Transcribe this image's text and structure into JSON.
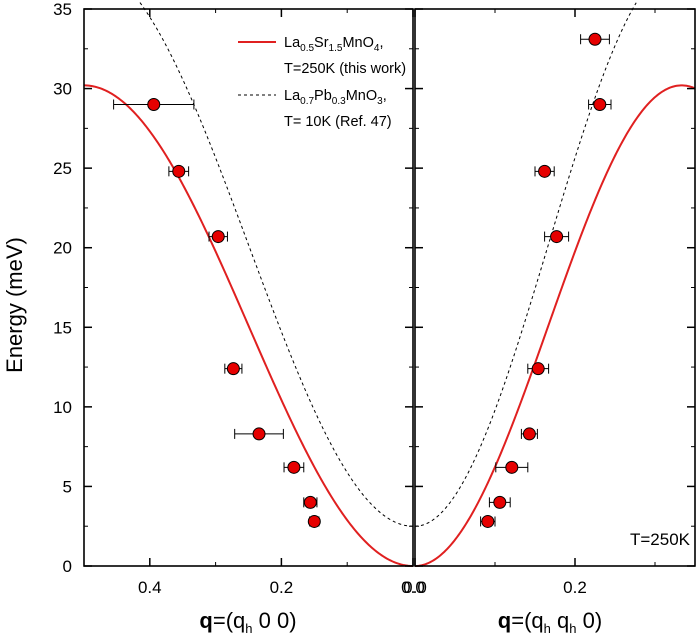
{
  "chart_data": {
    "type": "scatter",
    "ylabel": "Energy (meV)",
    "ylim": [
      0,
      35
    ],
    "yticks": [
      0,
      5,
      10,
      15,
      20,
      25,
      30,
      35
    ],
    "annotation": "T=250K",
    "colors": {
      "data": "#e60000",
      "fit": "#e02020",
      "reference": "#000000"
    },
    "panels": [
      {
        "id": "left",
        "direction": "(q_h 0 0)",
        "xlabel_bold": "q",
        "xlabel_parts": [
          "=(q",
          "h",
          " 0 0)"
        ],
        "xlim": [
          0.5,
          0.0
        ],
        "xticks": [
          0.4,
          0.2,
          0.0
        ],
        "xtick_labels": [
          "0.4",
          "0.2",
          "0.0"
        ],
        "points": [
          {
            "q": 0.15,
            "E": 2.8,
            "xerr": 0.007
          },
          {
            "q": 0.156,
            "E": 4.0,
            "xerr": 0.01
          },
          {
            "q": 0.181,
            "E": 6.2,
            "xerr": 0.015
          },
          {
            "q": 0.234,
            "E": 8.3,
            "xerr": 0.037
          },
          {
            "q": 0.273,
            "E": 12.4,
            "xerr": 0.013
          },
          {
            "q": 0.296,
            "E": 20.7,
            "xerr": 0.014
          },
          {
            "q": 0.356,
            "E": 24.8,
            "xerr": 0.015
          },
          {
            "q": 0.394,
            "E": 29.0,
            "xerr": 0.061
          }
        ]
      },
      {
        "id": "right",
        "direction": "(q_h q_h 0)",
        "xlabel_bold": "q",
        "xlabel_parts": [
          "=(q",
          "h",
          " q",
          "h",
          " 0)"
        ],
        "xlim": [
          0.0,
          0.35
        ],
        "xticks": [
          0.0,
          0.2
        ],
        "xtick_labels": [
          "0.0",
          "0.2"
        ],
        "points": [
          {
            "q": 0.091,
            "E": 2.8,
            "xerr": 0.009
          },
          {
            "q": 0.106,
            "E": 4.0,
            "xerr": 0.013
          },
          {
            "q": 0.121,
            "E": 6.2,
            "xerr": 0.02
          },
          {
            "q": 0.143,
            "E": 8.3,
            "xerr": 0.01
          },
          {
            "q": 0.154,
            "E": 12.4,
            "xerr": 0.013
          },
          {
            "q": 0.177,
            "E": 20.7,
            "xerr": 0.015
          },
          {
            "q": 0.162,
            "E": 24.8,
            "xerr": 0.012
          },
          {
            "q": 0.231,
            "E": 29.0,
            "xerr": 0.014
          },
          {
            "q": 0.225,
            "E": 33.1,
            "xerr": 0.018
          }
        ]
      }
    ],
    "legend": {
      "position": "top-center",
      "entries": [
        {
          "style": "solid",
          "color": "#e02020",
          "formula": [
            [
              "La",
              false
            ],
            [
              "0.5",
              true
            ],
            [
              "Sr",
              false
            ],
            [
              "1.5",
              true
            ],
            [
              "MnO",
              false
            ],
            [
              "4",
              true
            ],
            [
              ",",
              false
            ]
          ],
          "note": "T=250K (this work)"
        },
        {
          "style": "dashed",
          "color": "#000000",
          "formula": [
            [
              "La",
              false
            ],
            [
              "0.7",
              true
            ],
            [
              "Pb",
              false
            ],
            [
              "0.3",
              true
            ],
            [
              "MnO",
              false
            ],
            [
              "3",
              true
            ],
            [
              ",",
              false
            ]
          ],
          "note": "T= 10K (Ref. 47)"
        }
      ]
    },
    "fit_curves": [
      {
        "panel": "left",
        "label": "this work",
        "E_max": 30.2,
        "q_zone": 0.5
      },
      {
        "panel": "right",
        "label": "this work",
        "E_max": 30.2,
        "q_scale": 1.5
      },
      {
        "panel": "left",
        "label": "Ref. 47",
        "E0": 2.5,
        "amp": 26.2,
        "q_zone": 0.5
      },
      {
        "panel": "right",
        "label": "Ref. 47",
        "E0": 2.5,
        "amp": 26.2,
        "q_scale": 1.5
      }
    ]
  }
}
